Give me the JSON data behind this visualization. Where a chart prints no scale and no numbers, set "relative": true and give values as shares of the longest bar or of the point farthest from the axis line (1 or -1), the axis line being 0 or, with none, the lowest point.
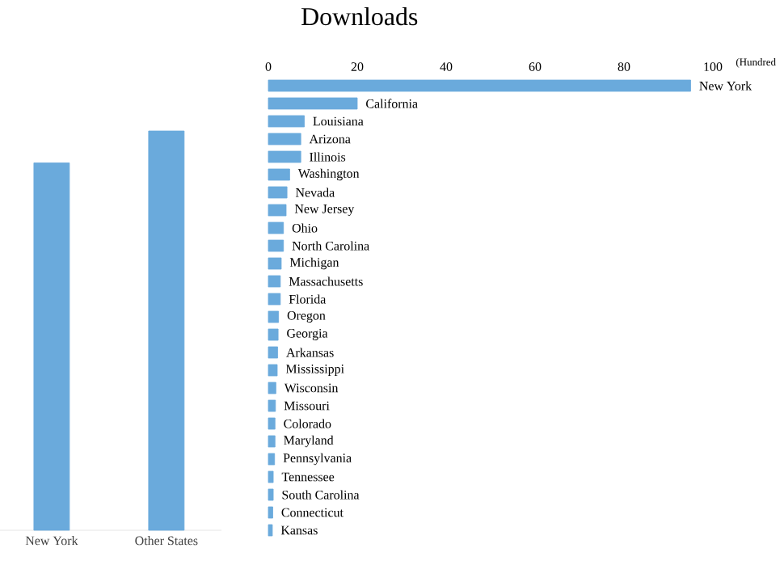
{
  "chart_data": [
    {
      "type": "bar",
      "relative": true,
      "categories": [
        "New York",
        "Other States"
      ],
      "values": [
        0.92,
        1
      ],
      "color": "#6aaadc"
    },
    {
      "type": "bar",
      "orientation": "horizontal",
      "title": "Downloads",
      "xlabel": "(Hundred",
      "xlim": [
        0,
        100
      ],
      "xticks": [
        0,
        20,
        40,
        60,
        80,
        100
      ],
      "color": "#6aaadc",
      "categories": [
        "New York",
        "California",
        "Louisiana",
        "Arizona",
        "Illinois",
        "Washington",
        "Nevada",
        "New Jersey",
        "Ohio",
        "North Carolina",
        "Michigan",
        "Massachusetts",
        "Florida",
        "Oregon",
        "Georgia",
        "Arkansas",
        "Mississippi",
        "Wisconsin",
        "Missouri",
        "Colorado",
        "Maryland",
        "Pennsylvania",
        "Tennessee",
        "South Carolina",
        "Connecticut",
        "Kansas"
      ],
      "values": [
        95,
        20,
        8.1,
        7.3,
        7.3,
        4.8,
        4.2,
        4,
        3.4,
        3.4,
        2.9,
        2.7,
        2.7,
        2.3,
        2.2,
        2.1,
        2,
        1.7,
        1.6,
        1.5,
        1.5,
        1.4,
        1.1,
        1.1,
        1,
        0.9
      ]
    }
  ]
}
